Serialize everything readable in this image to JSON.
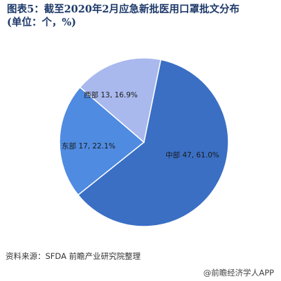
{
  "title": "图表5：截至2020年2月应急新批医用口罩批文分布\n(单位：个，%)",
  "chart_data": {
    "type": "pie",
    "title": "图表5：截至2020年2月应急新批医用口罩批文分布(单位：个，%)",
    "slices": [
      {
        "name": "中部",
        "value": 47,
        "percent": 61.0,
        "color": "#3a6fc4",
        "label": "中部 47, 61.0%"
      },
      {
        "name": "东部",
        "value": 17,
        "percent": 22.1,
        "color": "#4f8be0",
        "label": "东部 17, 22.1%"
      },
      {
        "name": "西部",
        "value": 13,
        "percent": 16.9,
        "color": "#a9b9ee",
        "label": "西部 13, 16.9%"
      }
    ],
    "legend": "none"
  },
  "footer": {
    "source": "资料来源：SFDA 前瞻产业研究院整理",
    "brand": "@前瞻经济学人APP"
  }
}
